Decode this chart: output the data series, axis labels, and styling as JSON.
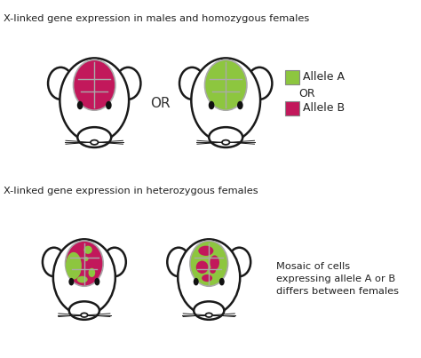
{
  "title_top": "X-linked gene expression in males and homozygous females",
  "title_bottom": "X-linked gene expression in heterozygous females",
  "allele_a_color": "#8DC63F",
  "allele_b_color": "#C2185B",
  "brain_outline_color": "#aaaaaa",
  "mouse_outline_color": "#1a1a1a",
  "background_color": "#ffffff",
  "legend_allele_a": "Allele A",
  "legend_or": "OR",
  "legend_allele_b": "Allele B",
  "mosaic_text": "Mosaic of cells\nexpressing allele A or B\ndiffers between females"
}
